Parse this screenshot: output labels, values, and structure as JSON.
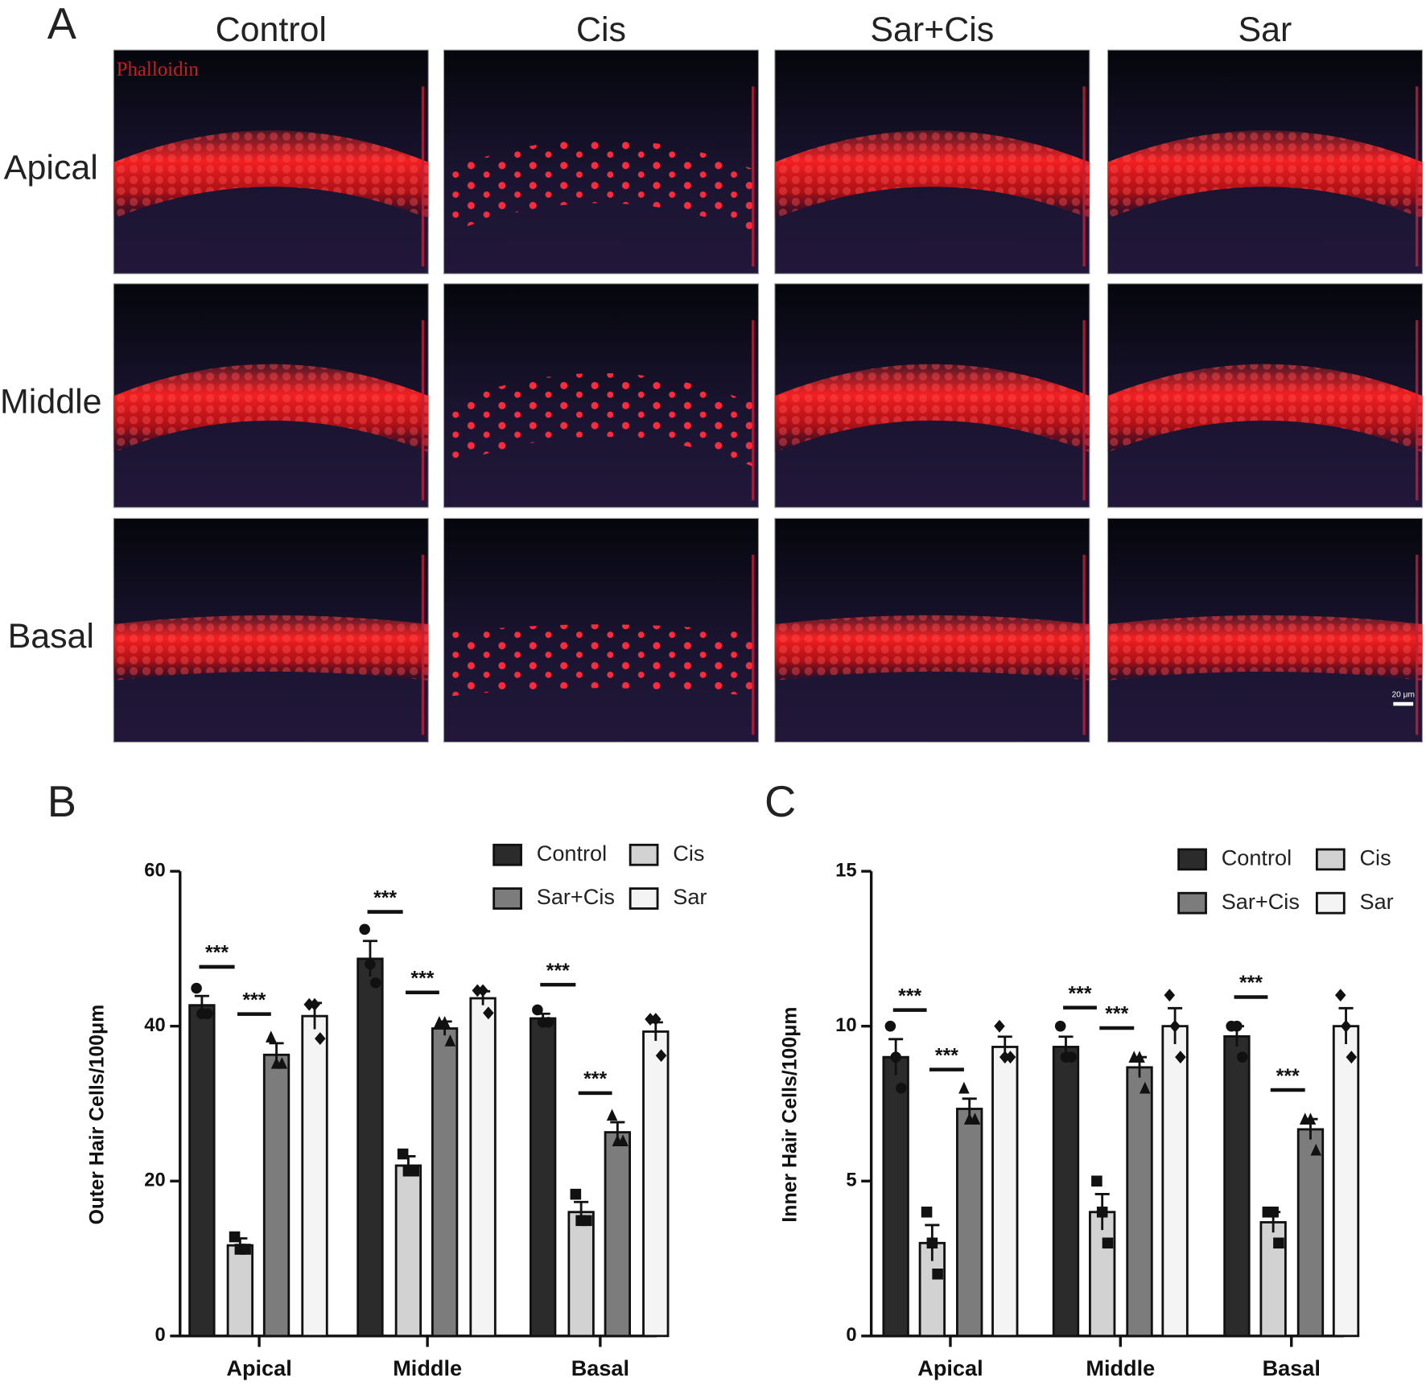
{
  "figure": {
    "panel_labels": [
      "A",
      "B",
      "C"
    ],
    "columns": [
      "Control",
      "Cis",
      "Sar+Cis",
      "Sar"
    ],
    "rows": [
      "Apical",
      "Middle",
      "Basal"
    ],
    "stain_label": "Phalloidin",
    "scale_bar": "20 μm"
  },
  "chart_data": [
    {
      "type": "bar",
      "ylabel": "Outer Hair Cells/100μm",
      "categories": [
        "Apical",
        "Middle",
        "Basal"
      ],
      "ylim": [
        0,
        60
      ],
      "yticks": [
        0,
        20,
        40,
        60
      ],
      "legend": "top-right",
      "series": [
        {
          "name": "Control",
          "color": "#2b2b2b",
          "marker": "circle",
          "values": [
            42.7,
            48.7,
            41
          ],
          "errors": [
            1.2,
            2.3,
            0.6
          ],
          "points": [
            [
              44.9,
              41.6,
              41.6
            ],
            [
              52.5,
              48,
              45.6
            ],
            [
              42.1,
              40.5,
              40.5
            ]
          ]
        },
        {
          "name": "Cis",
          "color": "#d2d2d2",
          "marker": "square",
          "values": [
            11.7,
            22,
            16
          ],
          "errors": [
            0.9,
            1.2,
            1.3
          ],
          "points": [
            [
              12.8,
              11.2,
              11.2
            ],
            [
              23.5,
              21.3,
              21.3
            ],
            [
              18.3,
              14.9,
              14.9
            ]
          ]
        },
        {
          "name": "Sar+Cis",
          "color": "#7c7c7c",
          "marker": "triangle",
          "values": [
            36.3,
            39.7,
            26.3
          ],
          "errors": [
            1.5,
            0.9,
            1.3
          ],
          "points": [
            [
              38.6,
              35.2,
              35.2
            ],
            [
              40.5,
              40.5,
              38.1
            ],
            [
              28.5,
              25.2,
              25.2
            ]
          ]
        },
        {
          "name": "Sar",
          "color": "#f4f4f4",
          "marker": "diamond",
          "values": [
            41.3,
            43.6,
            39.3
          ],
          "errors": [
            1.7,
            0.9,
            1.2
          ],
          "points": [
            [
              42.8,
              42.8,
              38.4
            ],
            [
              44.6,
              44.6,
              41.7
            ],
            [
              40.9,
              40.9,
              36.2
            ]
          ]
        }
      ],
      "annotations": [
        {
          "text": "***",
          "category": "Apical",
          "pair": [
            "Control",
            "Cis"
          ]
        },
        {
          "text": "***",
          "category": "Apical",
          "pair": [
            "Cis",
            "Sar+Cis"
          ]
        },
        {
          "text": "***",
          "category": "Middle",
          "pair": [
            "Control",
            "Cis"
          ]
        },
        {
          "text": "***",
          "category": "Middle",
          "pair": [
            "Cis",
            "Sar+Cis"
          ]
        },
        {
          "text": "***",
          "category": "Basal",
          "pair": [
            "Control",
            "Cis"
          ]
        },
        {
          "text": "***",
          "category": "Basal",
          "pair": [
            "Cis",
            "Sar+Cis"
          ]
        }
      ]
    },
    {
      "type": "bar",
      "ylabel": "Inner Hair Cells/100μm",
      "categories": [
        "Apical",
        "Middle",
        "Basal"
      ],
      "ylim": [
        0,
        15
      ],
      "yticks": [
        0,
        5,
        10,
        15
      ],
      "legend": "top-right",
      "series": [
        {
          "name": "Control",
          "color": "#2b2b2b",
          "marker": "circle",
          "values": [
            9,
            9.33,
            9.67
          ],
          "errors": [
            0.58,
            0.33,
            0.33
          ],
          "points": [
            [
              10,
              9,
              8
            ],
            [
              10,
              9,
              9
            ],
            [
              10,
              10,
              9
            ]
          ]
        },
        {
          "name": "Cis",
          "color": "#d2d2d2",
          "marker": "square",
          "values": [
            3,
            4,
            3.67
          ],
          "errors": [
            0.58,
            0.58,
            0.33
          ],
          "points": [
            [
              4,
              3,
              2
            ],
            [
              5,
              4,
              3
            ],
            [
              4,
              4,
              3
            ]
          ]
        },
        {
          "name": "Sar+Cis",
          "color": "#7c7c7c",
          "marker": "triangle",
          "values": [
            7.33,
            8.67,
            6.67
          ],
          "errors": [
            0.33,
            0.33,
            0.33
          ],
          "points": [
            [
              8,
              7,
              7
            ],
            [
              9,
              9,
              8
            ],
            [
              7,
              7,
              6
            ]
          ]
        },
        {
          "name": "Sar",
          "color": "#f4f4f4",
          "marker": "diamond",
          "values": [
            9.33,
            10,
            10
          ],
          "errors": [
            0.33,
            0.58,
            0.58
          ],
          "points": [
            [
              10,
              9,
              9
            ],
            [
              11,
              10,
              9
            ],
            [
              11,
              10,
              9
            ]
          ]
        }
      ],
      "annotations": [
        {
          "text": "***",
          "category": "Apical",
          "pair": [
            "Control",
            "Cis"
          ]
        },
        {
          "text": "***",
          "category": "Apical",
          "pair": [
            "Cis",
            "Sar+Cis"
          ]
        },
        {
          "text": "***",
          "category": "Middle",
          "pair": [
            "Control",
            "Cis"
          ]
        },
        {
          "text": "***",
          "category": "Middle",
          "pair": [
            "Cis",
            "Sar+Cis"
          ]
        },
        {
          "text": "***",
          "category": "Basal",
          "pair": [
            "Control",
            "Cis"
          ]
        },
        {
          "text": "***",
          "category": "Basal",
          "pair": [
            "Cis",
            "Sar+Cis"
          ]
        }
      ]
    }
  ]
}
